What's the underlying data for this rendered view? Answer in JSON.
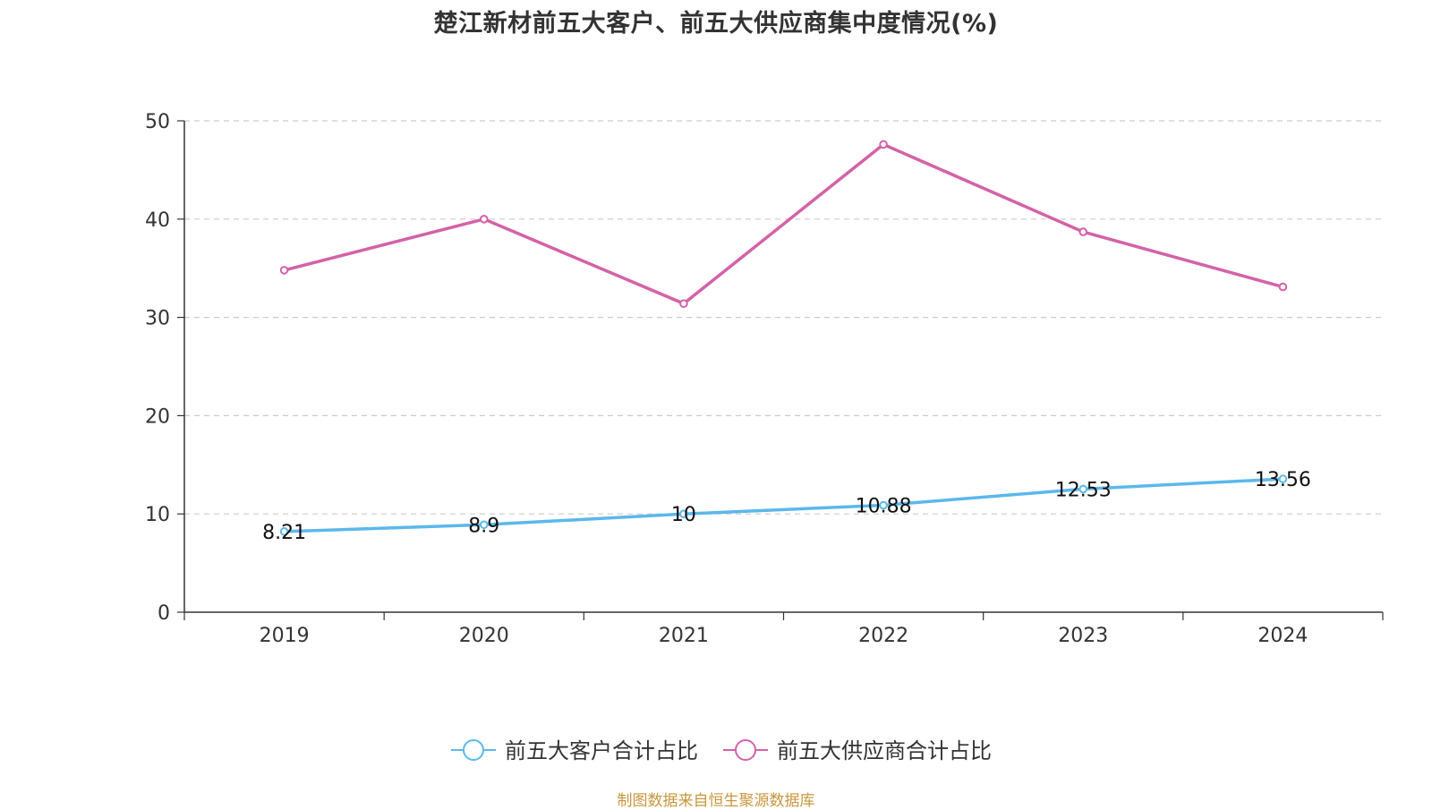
{
  "chart_data": {
    "type": "line",
    "title": "楚江新材前五大客户、前五大供应商集中度情况(%)",
    "categories": [
      "2019",
      "2020",
      "2021",
      "2022",
      "2023",
      "2024"
    ],
    "ylim": [
      0,
      50
    ],
    "yticks": [
      0,
      10,
      20,
      30,
      40,
      50
    ],
    "grid": true,
    "legend_position": "bottom",
    "series": [
      {
        "name": "前五大客户合计占比",
        "color": "#5bb8ec",
        "values": [
          8.21,
          8.9,
          10,
          10.88,
          12.53,
          13.56
        ],
        "labels": [
          "8.21",
          "8.9",
          "10",
          "10.88",
          "12.53",
          "13.56"
        ],
        "show_labels": true
      },
      {
        "name": "前五大供应商合计占比",
        "color": "#d462a8",
        "values": [
          34.8,
          40.0,
          31.4,
          47.6,
          38.7,
          33.1
        ],
        "show_labels": false
      }
    ],
    "source": "制图数据来自恒生聚源数据库"
  }
}
